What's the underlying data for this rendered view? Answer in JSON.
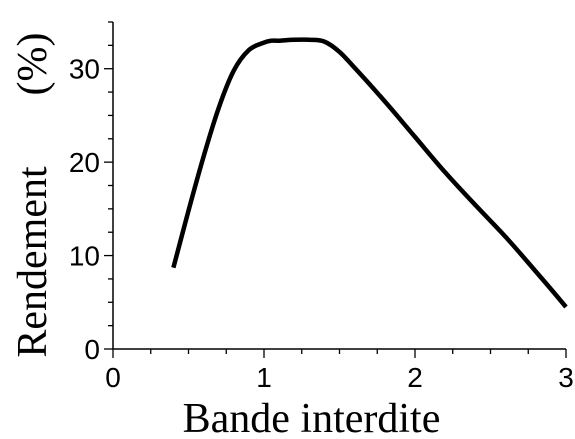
{
  "chart_data": {
    "type": "line",
    "xlabel": "Bande interdite",
    "ylabel": "Rendement",
    "ylabel_unit": "(%)",
    "xlim": [
      0,
      3
    ],
    "ylim": [
      0,
      35
    ],
    "x_ticks": [
      "0",
      "1",
      "2",
      "3"
    ],
    "y_ticks": [
      "0",
      "10",
      "20",
      "30"
    ],
    "x_tick_values": [
      0,
      1,
      2,
      3
    ],
    "y_tick_values": [
      0,
      10,
      20,
      30
    ],
    "grid": false,
    "series": [
      {
        "color": "#000000",
        "x": [
          0.4,
          0.5,
          0.6,
          0.7,
          0.8,
          0.9,
          1.0,
          1.05,
          1.1,
          1.2,
          1.3,
          1.4,
          1.5,
          1.6,
          1.8,
          2.0,
          2.2,
          2.4,
          2.6,
          2.8,
          3.0
        ],
        "y": [
          8.7,
          14.8,
          20.6,
          25.8,
          29.8,
          32.0,
          32.8,
          33.0,
          33.0,
          33.1,
          33.1,
          32.9,
          31.8,
          30.1,
          26.5,
          22.7,
          18.9,
          15.4,
          12.0,
          8.3,
          4.5
        ]
      }
    ]
  }
}
